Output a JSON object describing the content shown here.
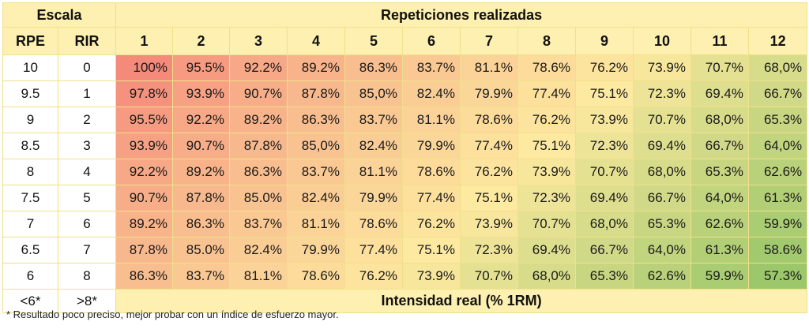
{
  "header": {
    "scale_label": "Escala",
    "reps_label": "Repeticiones realizadas",
    "rpe_label": "RPE",
    "rir_label": "RIR",
    "rep_columns": [
      "1",
      "2",
      "3",
      "4",
      "5",
      "6",
      "7",
      "8",
      "9",
      "10",
      "11",
      "12"
    ]
  },
  "rows": [
    {
      "rpe": "10",
      "rir": "0",
      "values": [
        "100%",
        "95.5%",
        "92.2%",
        "89.2%",
        "86.3%",
        "83.7%",
        "81.1%",
        "78.6%",
        "76.2%",
        "73.9%",
        "70.7%",
        "68,0%"
      ]
    },
    {
      "rpe": "9.5",
      "rir": "1",
      "values": [
        "97.8%",
        "93.9%",
        "90.7%",
        "87.8%",
        "85,0%",
        "82.4%",
        "79.9%",
        "77.4%",
        "75.1%",
        "72.3%",
        "69.4%",
        "66.7%"
      ]
    },
    {
      "rpe": "9",
      "rir": "2",
      "values": [
        "95.5%",
        "92.2%",
        "89.2%",
        "86.3%",
        "83.7%",
        "81.1%",
        "78.6%",
        "76.2%",
        "73.9%",
        "70.7%",
        "68,0%",
        "65.3%"
      ]
    },
    {
      "rpe": "8.5",
      "rir": "3",
      "values": [
        "93.9%",
        "90.7%",
        "87.8%",
        "85,0%",
        "82.4%",
        "79.9%",
        "77.4%",
        "75.1%",
        "72.3%",
        "69.4%",
        "66.7%",
        "64,0%"
      ]
    },
    {
      "rpe": "8",
      "rir": "4",
      "values": [
        "92.2%",
        "89.2%",
        "86.3%",
        "83.7%",
        "81.1%",
        "78.6%",
        "76.2%",
        "73.9%",
        "70.7%",
        "68,0%",
        "65.3%",
        "62.6%"
      ]
    },
    {
      "rpe": "7.5",
      "rir": "5",
      "values": [
        "90.7%",
        "87.8%",
        "85.0%",
        "82.4%",
        "79.9%",
        "77.4%",
        "75.1%",
        "72.3%",
        "69.4%",
        "66.7%",
        "64,0%",
        "61.3%"
      ]
    },
    {
      "rpe": "7",
      "rir": "6",
      "values": [
        "89.2%",
        "86.3%",
        "83.7%",
        "81.1%",
        "78.6%",
        "76.2%",
        "73.9%",
        "70.7%",
        "68,0%",
        "65.3%",
        "62.6%",
        "59.9%"
      ]
    },
    {
      "rpe": "6.5",
      "rir": "7",
      "values": [
        "87.8%",
        "85.0%",
        "82.4%",
        "79.9%",
        "77.4%",
        "75.1%",
        "72.3%",
        "69.4%",
        "66.7%",
        "64,0%",
        "61.3%",
        "58.6%"
      ]
    },
    {
      "rpe": "6",
      "rir": "8",
      "values": [
        "86.3%",
        "83.7%",
        "81.1%",
        "78.6%",
        "76.2%",
        "73.9%",
        "70.7%",
        "68,0%",
        "65.3%",
        "62.6%",
        "59.9%",
        "57.3%"
      ]
    }
  ],
  "footer": {
    "rpe": "<6*",
    "rir": ">8*",
    "label": "Intensidad real (% 1RM)"
  },
  "note": "* Resultado poco preciso, mejor probar con un índice de esfuerzo mayor.",
  "colors": {
    "high": "#f48a7a",
    "mid": "#fde9a0",
    "low": "#9cc76a",
    "header_bg": "#fdf0b0",
    "border": "#f0e08a"
  }
}
